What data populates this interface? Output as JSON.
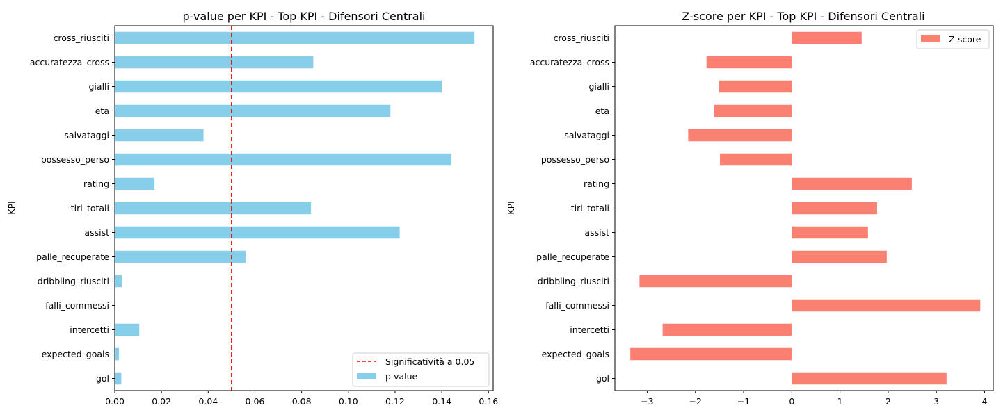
{
  "chart_data": [
    {
      "type": "bar",
      "orientation": "horizontal",
      "title": "p-value per KPI - Top KPI - Difensori Centrali",
      "xlabel": "",
      "ylabel": "KPI",
      "xlim": [
        0,
        0.162
      ],
      "xticks": [
        0.0,
        0.02,
        0.04,
        0.06,
        0.08,
        0.1,
        0.12,
        0.14,
        0.16
      ],
      "xtick_labels": [
        "0.00",
        "0.02",
        "0.04",
        "0.06",
        "0.08",
        "0.10",
        "0.12",
        "0.14",
        "0.16"
      ],
      "categories": [
        "cross_riusciti",
        "accuratezza_cross",
        "gialli",
        "eta",
        "salvataggi",
        "possesso_perso",
        "rating",
        "tiri_totali",
        "assist",
        "palle_recuperate",
        "dribbling_riusciti",
        "falli_commessi",
        "intercetti",
        "expected_goals",
        "gol"
      ],
      "values": [
        0.154,
        0.085,
        0.14,
        0.118,
        0.038,
        0.144,
        0.017,
        0.084,
        0.122,
        0.056,
        0.003,
        0.0,
        0.0105,
        0.0018,
        0.0028
      ],
      "bar_color": "#87ceeb",
      "reference_line": {
        "x": 0.05,
        "color": "#ff0000",
        "style": "dashed",
        "label": "Significatività a 0.05"
      },
      "legend": {
        "position": "lower-right",
        "entries": [
          "Significatività a 0.05",
          "p-value"
        ]
      }
    },
    {
      "type": "bar",
      "orientation": "horizontal",
      "title": "Z-score per KPI - Top KPI - Difensori Centrali",
      "xlabel": "",
      "ylabel": "KPI",
      "xlim": [
        -3.67,
        4.18
      ],
      "xticks": [
        -3,
        -2,
        -1,
        0,
        1,
        2,
        3,
        4
      ],
      "xtick_labels": [
        "−3",
        "−2",
        "−1",
        "0",
        "1",
        "2",
        "3",
        "4"
      ],
      "categories": [
        "cross_riusciti",
        "accuratezza_cross",
        "gialli",
        "eta",
        "salvataggi",
        "possesso_perso",
        "rating",
        "tiri_totali",
        "assist",
        "palle_recuperate",
        "dribbling_riusciti",
        "falli_commessi",
        "intercetti",
        "expected_goals",
        "gol"
      ],
      "values": [
        1.45,
        -1.77,
        -1.51,
        -1.61,
        -2.15,
        -1.49,
        2.49,
        1.77,
        1.58,
        1.97,
        -3.16,
        3.91,
        -2.68,
        -3.35,
        3.21
      ],
      "bar_color": "#fa8072",
      "legend": {
        "position": "upper-right",
        "entries": [
          "Z-score"
        ]
      }
    }
  ]
}
